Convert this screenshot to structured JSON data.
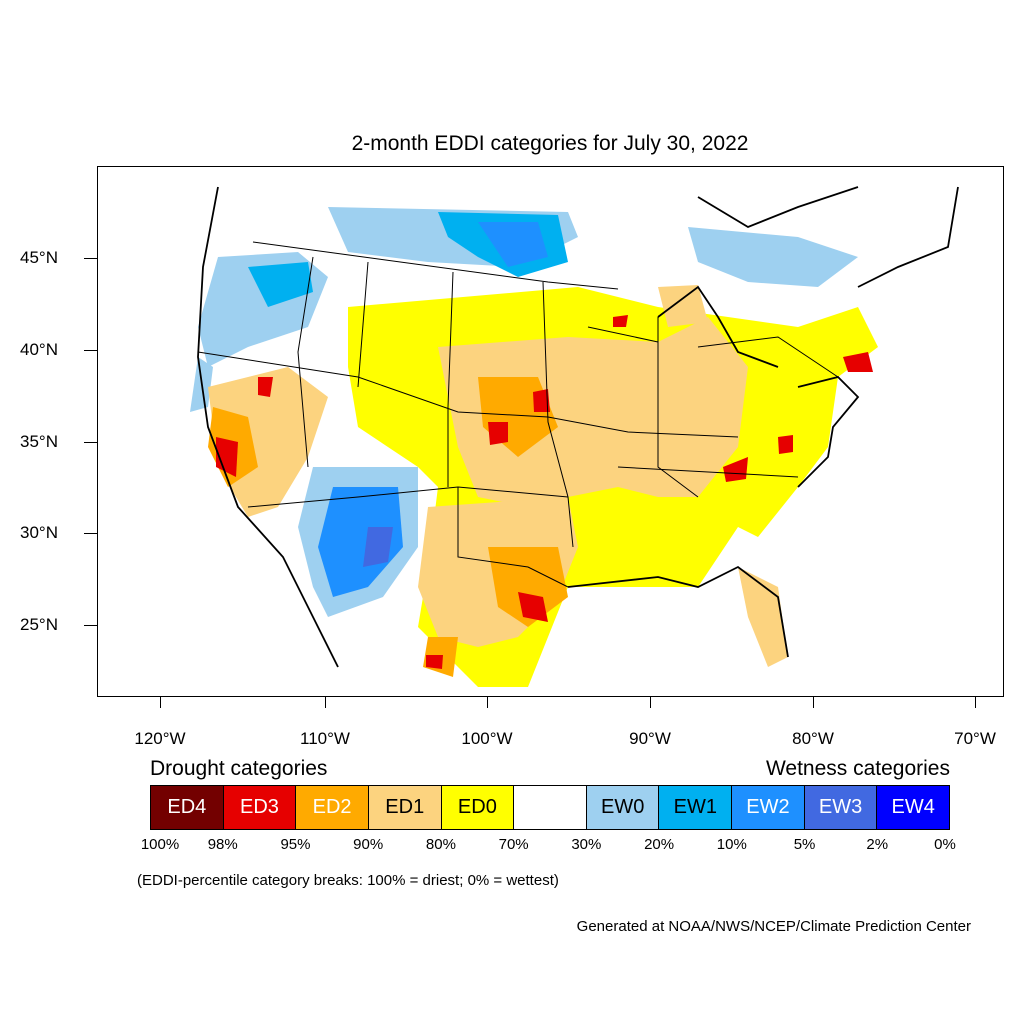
{
  "title": "2-month EDDI categories for July 30, 2022",
  "map": {
    "lat_labels": [
      "45°N",
      "40°N",
      "35°N",
      "30°N",
      "25°N"
    ],
    "lon_labels": [
      "120°W",
      "110°W",
      "100°W",
      "90°W",
      "80°W",
      "70°W"
    ]
  },
  "legend": {
    "drought_title": "Drought categories",
    "wetness_title": "Wetness categories",
    "categories": [
      {
        "label": "ED4",
        "color": "#730000",
        "text_color": "#ffffff"
      },
      {
        "label": "ED3",
        "color": "#e60000",
        "text_color": "#ffffff"
      },
      {
        "label": "ED2",
        "color": "#ffaa00",
        "text_color": "#ffffff"
      },
      {
        "label": "ED1",
        "color": "#fcd37f",
        "text_color": "#000000"
      },
      {
        "label": "ED0",
        "color": "#ffff00",
        "text_color": "#000000"
      },
      {
        "label": "",
        "color": "#ffffff",
        "text_color": "#000000"
      },
      {
        "label": "EW0",
        "color": "#9ed0f0",
        "text_color": "#000000"
      },
      {
        "label": "EW1",
        "color": "#00b0f0",
        "text_color": "#000000"
      },
      {
        "label": "EW2",
        "color": "#1e90ff",
        "text_color": "#ffffff"
      },
      {
        "label": "EW3",
        "color": "#4169e1",
        "text_color": "#ffffff"
      },
      {
        "label": "EW4",
        "color": "#0000ff",
        "text_color": "#ffffff"
      }
    ],
    "breaks": [
      "100%",
      "98%",
      "95%",
      "90%",
      "80%",
      "70%",
      "30%",
      "20%",
      "10%",
      "5%",
      "2%",
      "0%"
    ]
  },
  "note": "(EDDI-percentile category breaks: 100% = driest; 0% = wettest)",
  "credit": "Generated at NOAA/NWS/NCEP/Climate Prediction Center"
}
